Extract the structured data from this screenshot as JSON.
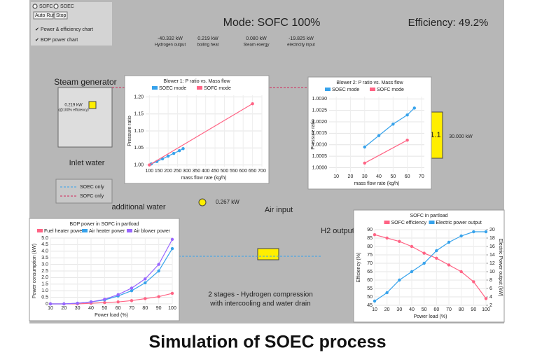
{
  "controls": {
    "radios": [
      "SOFC",
      "SOEC"
    ],
    "buttons": [
      "Auto Run",
      "Stop"
    ],
    "checkboxes": [
      "Power & efficiency chart",
      "BOP power chart"
    ]
  },
  "header": {
    "mode": "Mode: SOFC 100%",
    "efficiency": "Efficiency: 49.2%"
  },
  "stats": [
    {
      "value": "-40.332 kW",
      "label": "Hydrogen output"
    },
    {
      "value": "0.219 kW",
      "label": "boiling heat"
    },
    {
      "value": "0.080 kW",
      "label": "Steam exergy"
    },
    {
      "value": "-19.825 kW",
      "label": "electricity input"
    }
  ],
  "diagram": {
    "steam_generator": "Steam generator",
    "steam_power": "0.219 kW",
    "steam_note": "(@100% efficiency)",
    "inlet_water": "Inlet water",
    "legend": [
      "SOEC only",
      "SOFC only"
    ],
    "additional_water": "additional water",
    "air_input": "Air input",
    "h2_output": "H2 output",
    "compression": [
      "2 stages - Hydrogen compression",
      "with intercooling and water drain"
    ],
    "stack": "1.1",
    "stack_power": "30.000 kW",
    "blower_power": "0.267 kW"
  },
  "caption": "Simulation of SOEC process",
  "charts": [
    {
      "type": "scatter",
      "title": "Blower 1: P ratio vs. Mass flow",
      "xlabel": "mass flow rate (kg/h)",
      "ylabel": "Pressure ratio",
      "xlim": [
        80,
        700
      ],
      "xticks": [
        100,
        150,
        200,
        250,
        300,
        350,
        400,
        450,
        500,
        550,
        600,
        650,
        700
      ],
      "ylim": [
        0.995,
        1.205
      ],
      "yticks": [
        {
          "value": 1,
          "label": "1.00"
        },
        1.05,
        {
          "value": 1.1,
          "label": "1.10"
        },
        1.15,
        {
          "value": 1.2,
          "label": "1.20"
        }
      ],
      "series": [
        {
          "name": "SOEC mode",
          "color": "#36a2eb",
          "x": [
            110,
            140,
            170,
            200,
            230,
            260,
            280
          ],
          "values": [
            1.003,
            1.01,
            1.018,
            1.026,
            1.034,
            1.042,
            1.048
          ]
        },
        {
          "name": "SOFC mode",
          "color": "#ff6384",
          "x": [
            100,
            650
          ],
          "values": [
            1.0,
            1.18
          ]
        }
      ]
    },
    {
      "type": "scatter",
      "title": "Blower 2: P ratio vs. Mass flow",
      "xlabel": "mass flow rate (kg/h)",
      "ylabel": "Pressure ratio",
      "xlim": [
        5,
        72
      ],
      "xticks": [
        10,
        20,
        30,
        40,
        50,
        60,
        70
      ],
      "ylim": [
        0.9998,
        1.0031
      ],
      "yticks": [
        {
          "value": 1,
          "label": "1.0000"
        },
        1.0005,
        {
          "value": 1.001,
          "label": "1.0010"
        },
        1.0015,
        {
          "value": 1.002,
          "label": "1.0020"
        },
        1.0025,
        {
          "value": 1.003,
          "label": "1.0030"
        }
      ],
      "series": [
        {
          "name": "SOEC mode",
          "color": "#36a2eb",
          "x": [
            30,
            40,
            50,
            60,
            65
          ],
          "values": [
            1.0009,
            1.0014,
            1.0019,
            1.0023,
            1.0026
          ]
        },
        {
          "name": "SOFC mode",
          "color": "#ff6384",
          "x": [
            30,
            60
          ],
          "values": [
            1.0002,
            1.0012
          ]
        }
      ]
    },
    {
      "type": "line",
      "title": "BOP power in SOFC in partload",
      "xlabel": "Power load (%)",
      "ylabel": "Power consumption (kW)",
      "x": [
        10,
        20,
        30,
        40,
        50,
        60,
        70,
        80,
        90,
        100
      ],
      "xlim": [
        10,
        100
      ],
      "xticks": [
        10,
        20,
        30,
        40,
        50,
        60,
        70,
        80,
        90,
        100
      ],
      "ylim": [
        0,
        5
      ],
      "yticks": [
        0,
        0.5,
        {
          "value": 1,
          "label": "1.0"
        },
        1.5,
        {
          "value": 2,
          "label": "2.0"
        },
        2.5,
        {
          "value": 3,
          "label": "3.0"
        },
        3.5,
        {
          "value": 4,
          "label": "4.0"
        },
        4.5,
        {
          "value": 5,
          "label": "5.0"
        }
      ],
      "series": [
        {
          "name": "Fuel heater power",
          "color": "#ff6384",
          "values": [
            0,
            0,
            0,
            0.05,
            0.1,
            0.15,
            0.25,
            0.4,
            0.55,
            0.8
          ]
        },
        {
          "name": "Air heater power",
          "color": "#36a2eb",
          "values": [
            0,
            0,
            0.05,
            0.15,
            0.3,
            0.6,
            1.0,
            1.6,
            2.5,
            4.2
          ]
        },
        {
          "name": "Air blower power",
          "color": "#9966ff",
          "values": [
            0,
            0,
            0.05,
            0.15,
            0.35,
            0.7,
            1.2,
            1.9,
            3.0,
            4.9
          ]
        }
      ]
    },
    {
      "type": "line",
      "title": "SOFC in partload",
      "xlabel": "Power load (%)",
      "ylabel": "Efficiency (%)",
      "y2label": "Electric Power output (kW)",
      "x": [
        10,
        20,
        30,
        40,
        50,
        60,
        70,
        80,
        90,
        100
      ],
      "xlim": [
        10,
        100
      ],
      "xticks": [
        10,
        20,
        30,
        40,
        50,
        60,
        70,
        80,
        90,
        100
      ],
      "ylim": [
        45,
        90
      ],
      "yticks": [
        45,
        50,
        55,
        60,
        65,
        70,
        75,
        80,
        85,
        90
      ],
      "y2lim": [
        2,
        20
      ],
      "y2ticks": [
        2,
        4,
        6,
        8,
        10,
        12,
        14,
        16,
        18,
        20
      ],
      "series": [
        {
          "name": "SOFC efficiency",
          "color": "#ff6384",
          "values": [
            87,
            85,
            83,
            80,
            76,
            73,
            69,
            65,
            59,
            49
          ]
        },
        {
          "name": "Electric power output",
          "color": "#36a2eb",
          "axis": "y2",
          "values": [
            3,
            5,
            8,
            10,
            12,
            15,
            17,
            18.5,
            19.5,
            19.5
          ]
        }
      ]
    }
  ]
}
